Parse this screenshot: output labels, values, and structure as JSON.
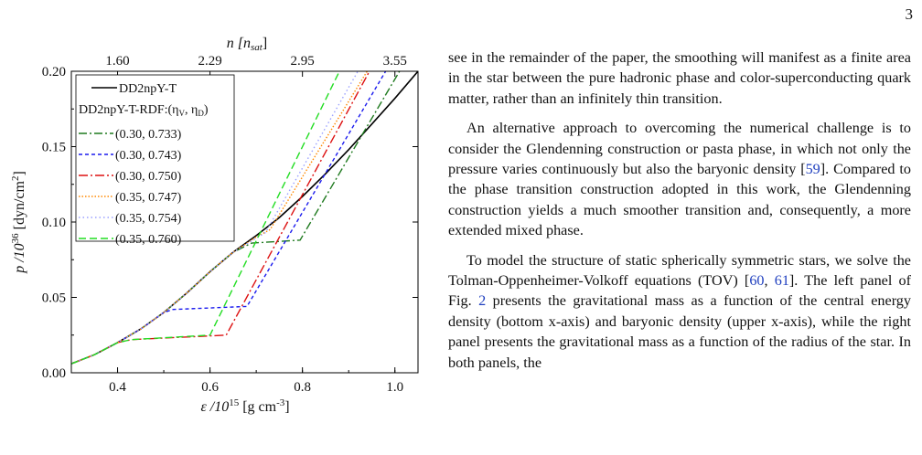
{
  "page_number": "3",
  "figure": {
    "top_axis_label": "n [n",
    "top_axis_label_sub": "sat",
    "top_axis_label_end": "]",
    "top_ticks": [
      "1.60",
      "2.29",
      "2.95",
      "3.55"
    ],
    "y_axis_label": "p /10",
    "y_axis_exp": "36",
    "y_axis_unit": " [dyn/cm",
    "y_axis_unit_exp": "2",
    "y_axis_unit_end": "]",
    "x_axis_label": "ε /10",
    "x_axis_exp": "15",
    "x_axis_unit": " [g cm",
    "x_axis_unit_exp": "-3",
    "x_axis_unit_end": "]",
    "legend": {
      "title_a": "DD2npY-T-RDF:(η",
      "title_sub1": "V",
      "title_mid": ", η",
      "title_sub2": "D",
      "title_end": ")"
    }
  },
  "chart_data": {
    "type": "line",
    "xlabel": "ε /10^15 [g cm^-3]",
    "ylabel": "p /10^36 [dyn/cm^2]",
    "x2label": "n [n_sat]",
    "xlim": [
      0.3,
      1.05
    ],
    "ylim": [
      0.0,
      0.2
    ],
    "x_ticks": [
      0.4,
      0.6,
      0.8,
      1.0
    ],
    "x_tick_labels": [
      "0.4",
      "0.6",
      "0.8",
      "1.0"
    ],
    "y_ticks": [
      0.0,
      0.05,
      0.1,
      0.15,
      0.2
    ],
    "y_tick_labels": [
      "0.00",
      "0.05",
      "0.10",
      "0.15",
      "0.20"
    ],
    "top_tick_positions": [
      0.4,
      0.6,
      0.8,
      1.0
    ],
    "legend_position": "top-left",
    "series": [
      {
        "name": "DD2npY-T",
        "color": "#000000",
        "dash": "",
        "x": [
          0.3,
          0.35,
          0.4,
          0.45,
          0.5,
          0.55,
          0.6,
          0.65,
          0.7,
          0.75,
          0.8,
          0.85,
          0.9,
          0.95,
          1.0,
          1.05
        ],
        "y": [
          0.006,
          0.012,
          0.02,
          0.029,
          0.04,
          0.053,
          0.067,
          0.08,
          0.091,
          0.103,
          0.117,
          0.132,
          0.148,
          0.165,
          0.182,
          0.2
        ]
      },
      {
        "name": "(0.30, 0.733)",
        "color": "#1f7a1f",
        "dash": "9,3,2,3",
        "x": [
          0.3,
          0.35,
          0.4,
          0.45,
          0.5,
          0.55,
          0.6,
          0.65,
          0.69,
          0.795,
          1.01
        ],
        "y": [
          0.006,
          0.012,
          0.02,
          0.029,
          0.04,
          0.053,
          0.067,
          0.08,
          0.086,
          0.088,
          0.2
        ]
      },
      {
        "name": "(0.30, 0.743)",
        "color": "#1a1aee",
        "dash": "4,3",
        "x": [
          0.3,
          0.35,
          0.4,
          0.45,
          0.5,
          0.52,
          0.68,
          0.98
        ],
        "y": [
          0.006,
          0.012,
          0.02,
          0.029,
          0.04,
          0.042,
          0.044,
          0.2
        ]
      },
      {
        "name": "(0.30, 0.750)",
        "color": "#dd1111",
        "dash": "10,3,2,3",
        "x": [
          0.3,
          0.35,
          0.4,
          0.43,
          0.635,
          0.945
        ],
        "y": [
          0.006,
          0.012,
          0.02,
          0.022,
          0.025,
          0.2
        ]
      },
      {
        "name": "(0.35, 0.747)",
        "color": "#ff8800",
        "dash": "1.5,2",
        "x": [
          0.3,
          0.35,
          0.4,
          0.45,
          0.5,
          0.55,
          0.6,
          0.65,
          0.7,
          0.73,
          0.94
        ],
        "y": [
          0.006,
          0.012,
          0.02,
          0.029,
          0.04,
          0.053,
          0.067,
          0.08,
          0.09,
          0.095,
          0.2
        ]
      },
      {
        "name": "(0.35, 0.754)",
        "color": "#9aa0ff",
        "dash": "1.5,3",
        "x": [
          0.3,
          0.35,
          0.4,
          0.45,
          0.5,
          0.55,
          0.6,
          0.65,
          0.72,
          0.92
        ],
        "y": [
          0.006,
          0.012,
          0.02,
          0.029,
          0.04,
          0.053,
          0.067,
          0.08,
          0.093,
          0.2
        ]
      },
      {
        "name": "(0.35, 0.760)",
        "color": "#22dd22",
        "dash": "8,4",
        "x": [
          0.3,
          0.35,
          0.4,
          0.43,
          0.6,
          0.88
        ],
        "y": [
          0.006,
          0.012,
          0.02,
          0.022,
          0.025,
          0.2
        ]
      }
    ]
  },
  "text": {
    "p1": "see in the remainder of the paper, the smoothing will manifest as a finite area in the star between the pure hadronic phase and color-superconducting quark matter, rather than an infinitely thin transition.",
    "p2a": "An alternative approach to overcoming the numerical challenge is to consider the Glendenning construction or pasta phase, in which not only the pressure varies continuously but also the baryonic density [",
    "p2ref": "59",
    "p2b": "]. Compared to the phase transition construction adopted in this work, the Glendenning construction yields a much smoother transition and, consequently, a more extended mixed phase.",
    "p3a": "To model the structure of static spherically symmetric stars, we solve the Tolman-Oppenheimer-Volkoff equations (TOV) [",
    "p3ref1": "60",
    "p3sep": ", ",
    "p3ref2": "61",
    "p3b": "]. The left panel of Fig. ",
    "p3ref3": "2",
    "p3c": " presents the gravitational mass as a function of the central energy density (bottom x-axis) and baryonic density (upper x-axis), while the right panel presents the gravitational mass as a function of the radius of the star. In both panels, the"
  }
}
